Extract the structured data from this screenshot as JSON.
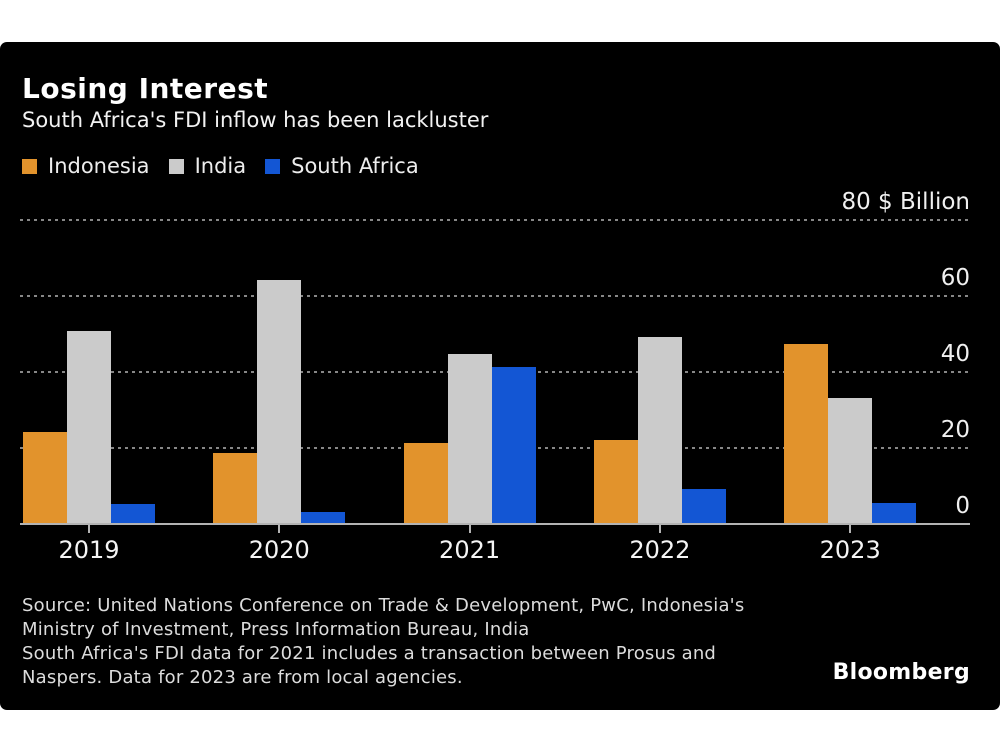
{
  "header": {
    "title": "Losing Interest",
    "subtitle": "South Africa's FDI inflow has been lackluster"
  },
  "chart_data": {
    "type": "bar",
    "title": "Losing Interest",
    "subtitle": "South Africa's FDI inflow has been lackluster",
    "categories": [
      "2019",
      "2020",
      "2021",
      "2022",
      "2023"
    ],
    "series": [
      {
        "name": "Indonesia",
        "color": "#E2932C",
        "values": [
          23.9,
          18.5,
          21.0,
          21.9,
          47.0
        ]
      },
      {
        "name": "India",
        "color": "#CBCBCB",
        "values": [
          50.5,
          64.0,
          44.5,
          49.0,
          33.0
        ]
      },
      {
        "name": "South Africa",
        "color": "#1356D4",
        "values": [
          5.1,
          3.0,
          41.0,
          9.0,
          5.3
        ]
      }
    ],
    "ylabel": "$ Billion",
    "ylim": [
      0,
      80
    ],
    "y_ticks": [
      0,
      20,
      40,
      60,
      80
    ],
    "top_tick_label": "80 $ Billion",
    "grid": "dotted horizontal",
    "legend_position": "top-left"
  },
  "footer": {
    "source_lines": [
      "Source: United Nations Conference on Trade & Development, PwC, Indonesia's",
      "Ministry of Investment, Press Information Bureau, India"
    ],
    "note_lines": [
      "South Africa's FDI data for 2021 includes a transaction between Prosus and",
      "Naspers. Data for 2023 are from local agencies."
    ],
    "brand": "Bloomberg"
  },
  "colors": {
    "page_background": "#FFFFFF",
    "card_background": "#000000",
    "indonesia": "#E2932C",
    "india": "#CBCBCB",
    "south_africa": "#1356D4",
    "gridline": "#878787",
    "axis_line": "#B3B3B3",
    "title_text": "#FFFFFF",
    "body_text": "#F0F0F0"
  }
}
